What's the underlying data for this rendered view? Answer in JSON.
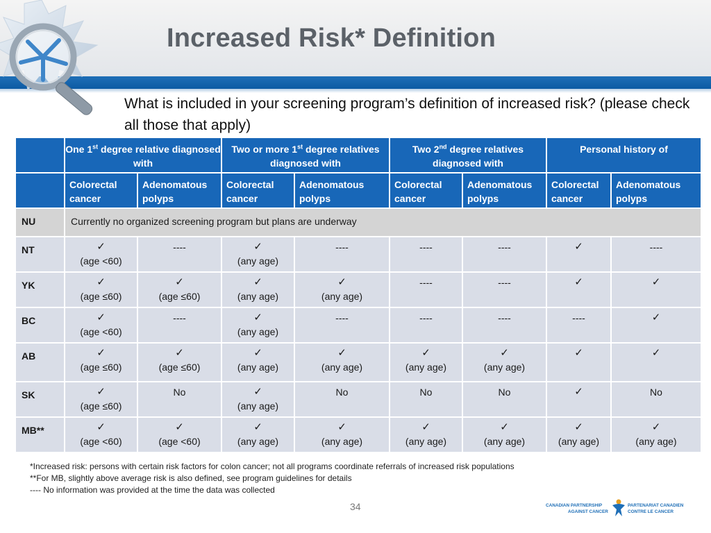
{
  "title": "Increased Risk* Definition",
  "question": "What is included in your screening program’s definition of increased risk? (please check all those that apply)",
  "table": {
    "group_headers": [
      {
        "pre": "One 1",
        "sup": "st",
        "post": " degree relative diagnosed  with"
      },
      {
        "pre": "Two or more 1",
        "sup": "st",
        "post": " degree relatives diagnosed with"
      },
      {
        "pre": "Two 2",
        "sup": "nd",
        "post": " degree relatives diagnosed with"
      },
      {
        "pre": "Personal history of",
        "sup": "",
        "post": ""
      }
    ],
    "sub_headers": [
      "Colorectal cancer",
      "Adenomatous polyps",
      "Colorectal cancer",
      "Adenomatous polyps",
      "Colorectal cancer",
      "Adenomatous polyps",
      "Colorectal cancer",
      "Adenomatous polyps"
    ],
    "nu": {
      "province": "NU",
      "message": "Currently no organized screening program but plans are underway"
    },
    "rows": [
      {
        "province": "NT",
        "cells": [
          {
            "check": "✓",
            "note": "(age <60)"
          },
          {
            "check": "",
            "note": "----"
          },
          {
            "check": "✓",
            "note": "(any age)"
          },
          {
            "check": "",
            "note": "----"
          },
          {
            "check": "",
            "note": "----"
          },
          {
            "check": "",
            "note": "----"
          },
          {
            "check": "✓",
            "note": ""
          },
          {
            "check": "",
            "note": "----"
          }
        ]
      },
      {
        "province": "YK",
        "cells": [
          {
            "check": "✓",
            "note": "(age ≤60)"
          },
          {
            "check": "✓",
            "note": "(age ≤60)"
          },
          {
            "check": "✓",
            "note": "(any age)"
          },
          {
            "check": "✓",
            "note": "(any age)"
          },
          {
            "check": "",
            "note": "----"
          },
          {
            "check": "",
            "note": "----"
          },
          {
            "check": "✓",
            "note": ""
          },
          {
            "check": "✓",
            "note": ""
          }
        ]
      },
      {
        "province": "BC",
        "cells": [
          {
            "check": "✓",
            "note": "(age <60)"
          },
          {
            "check": "",
            "note": "----"
          },
          {
            "check": "✓",
            "note": "(any age)"
          },
          {
            "check": "",
            "note": "----"
          },
          {
            "check": "",
            "note": "----"
          },
          {
            "check": "",
            "note": "----"
          },
          {
            "check": "",
            "note": "----"
          },
          {
            "check": "✓",
            "note": ""
          }
        ]
      },
      {
        "province": "AB",
        "cells": [
          {
            "check": "✓",
            "note": "(age ≤60)"
          },
          {
            "check": "✓",
            "note": "(age ≤60)"
          },
          {
            "check": "✓",
            "note": "(any age)"
          },
          {
            "check": "✓",
            "note": "(any age)"
          },
          {
            "check": "✓",
            "note": "(any age)"
          },
          {
            "check": "✓",
            "note": "(any age)"
          },
          {
            "check": "✓",
            "note": ""
          },
          {
            "check": "✓",
            "note": ""
          }
        ]
      },
      {
        "province": "SK",
        "cells": [
          {
            "check": "✓",
            "note": "(age ≤60)"
          },
          {
            "check": "",
            "note": "No"
          },
          {
            "check": "✓",
            "note": "(any age)"
          },
          {
            "check": "",
            "note": "No"
          },
          {
            "check": "",
            "note": "No"
          },
          {
            "check": "",
            "note": "No"
          },
          {
            "check": "✓",
            "note": ""
          },
          {
            "check": "",
            "note": "No"
          }
        ]
      },
      {
        "province": "MB**",
        "cells": [
          {
            "check": "✓",
            "note": "(age <60)"
          },
          {
            "check": "✓",
            "note": "(age <60)"
          },
          {
            "check": "✓",
            "note": "(any age)"
          },
          {
            "check": "✓",
            "note": "(any age)"
          },
          {
            "check": "✓",
            "note": "(any age)"
          },
          {
            "check": "✓",
            "note": "(any age)"
          },
          {
            "check": "✓",
            "note": "(any age)"
          },
          {
            "check": "✓",
            "note": "(any age)"
          }
        ]
      }
    ]
  },
  "footnotes": [
    "*Increased risk: persons with certain risk factors for colon cancer; not all programs coordinate referrals of increased risk populations",
    "**For MB, slightly above average risk is also defined, see program guidelines for details",
    "---- No information was provided at the time the data was collected"
  ],
  "page_number": "34",
  "partner_logo": {
    "en_line1": "CANADIAN PARTNERSHIP",
    "en_line2": "AGAINST CANCER",
    "fr_line1": "PARTENARIAT CANADIEN",
    "fr_line2": "CONTRE LE CANCER"
  },
  "colors": {
    "header_blue": "#1867b8",
    "row_bg": "#d9dde7",
    "nu_bg": "#d4d4d4",
    "title_gray": "#5b6168"
  }
}
